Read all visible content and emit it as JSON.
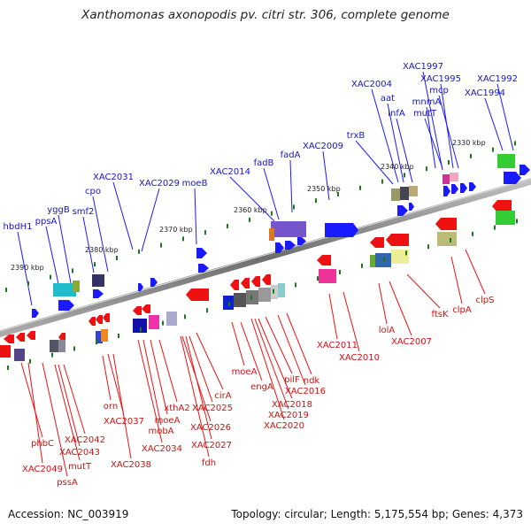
{
  "header": {
    "title": "Xanthomonas axonopodis pv. citri str. 306, complete genome"
  },
  "footer": {
    "accession": "Accession: NC_003919",
    "summary": "Topology: circular; Length: 5,175,554 bp; Genes: 4,373"
  },
  "colors": {
    "forward_strand": "#1a1aff",
    "reverse_strand": "#ee1111",
    "tick_marks": "#1a7a1a",
    "backbone": "#808080"
  },
  "scale_ticks": [
    "2390 kbp",
    "2380 kbp",
    "2370 kbp",
    "2360 kbp",
    "2350 kbp",
    "2340 kbp",
    "2330 kbp"
  ],
  "forward_genes": [
    "hbdH1",
    "ppsA",
    "yggB",
    "smf2",
    "cpo",
    "XAC2031",
    "XAC2029",
    "moeB",
    "XAC2014",
    "fadB",
    "fadA",
    "XAC2009",
    "trxB",
    "XAC2004",
    "aat",
    "infA",
    "XAC1997",
    "XAC1995",
    "mcp",
    "mnmA",
    "mutT",
    "XAC1992",
    "XAC1994"
  ],
  "reverse_genes": [
    "phbC",
    "XAC2049",
    "pssA",
    "mutT",
    "XAC2043",
    "XAC2042",
    "orn",
    "XAC2037",
    "XAC2038",
    "moeA",
    "mobA",
    "XAC2034",
    "xthA2",
    "XAC2026",
    "XAC2025",
    "XAC2027",
    "fdh",
    "cirA",
    "moeA",
    "engA",
    "pilF",
    "XAC2018",
    "XAC2019",
    "XAC2020",
    "XAC2016",
    "ndk",
    "XAC2011",
    "XAC2010",
    "lolA",
    "XAC2007",
    "ftsK",
    "clpA",
    "clpS"
  ]
}
